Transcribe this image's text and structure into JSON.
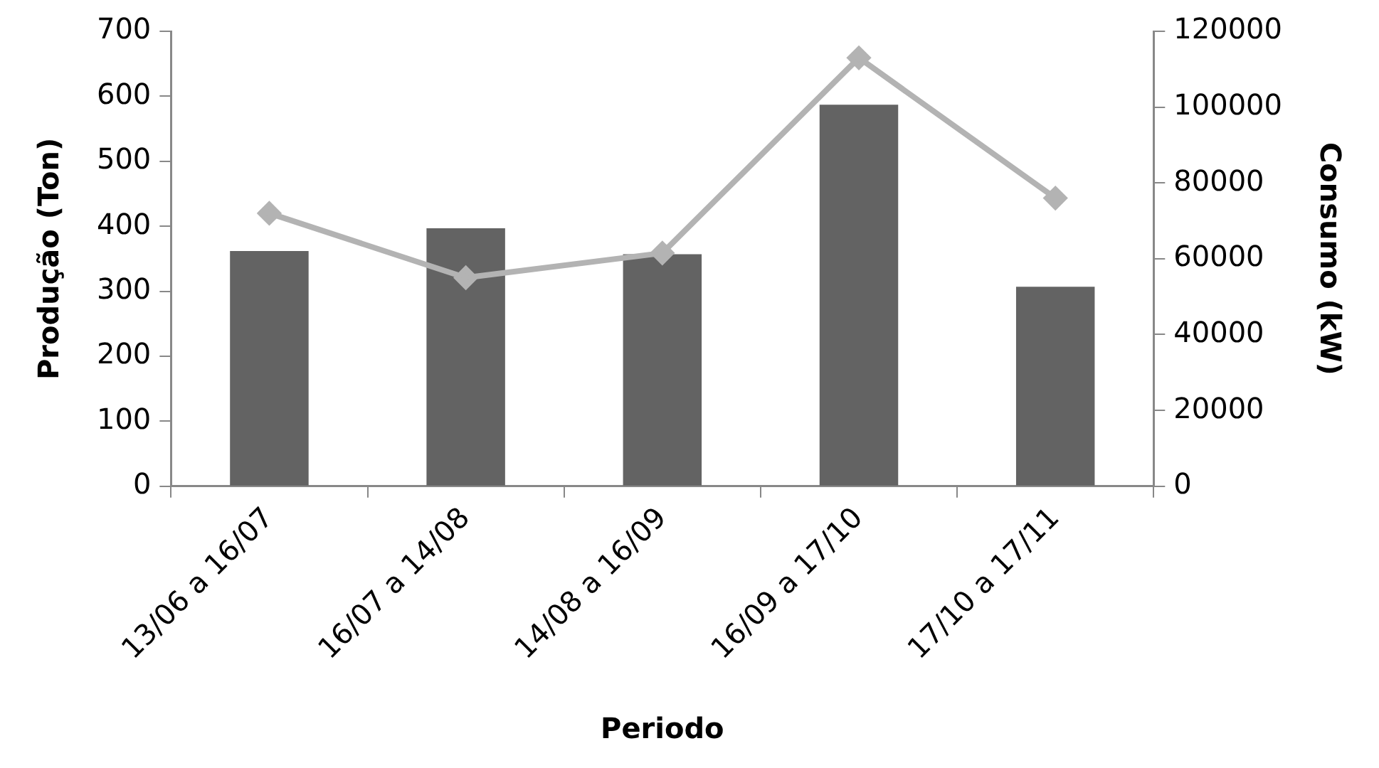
{
  "chart_data": {
    "type": "bar",
    "xlabel": "Periodo",
    "ylabel": "Produção (Ton)",
    "y2label": "Consumo (kW)",
    "categories": [
      "13/06 a 16/07",
      "16/07 a 14/08",
      "14/08 a 16/09",
      "16/09 a 17/10",
      "17/10 a 17/11"
    ],
    "series": [
      {
        "color": "#636363",
        "values": [
          362,
          397,
          357,
          587,
          307
        ]
      },
      {
        "type": "line",
        "axis": "y2",
        "color": "#b3b3b3",
        "marker": "diamond",
        "values": [
          72000,
          55000,
          61500,
          113000,
          76000
        ]
      }
    ],
    "ylim": [
      0,
      700
    ],
    "yticks": [
      0,
      100,
      200,
      300,
      400,
      500,
      600,
      700
    ],
    "y2lim": [
      0,
      120000
    ],
    "y2ticks": [
      0,
      20000,
      40000,
      60000,
      80000,
      100000,
      120000
    ],
    "grid": false,
    "legend": false
  }
}
